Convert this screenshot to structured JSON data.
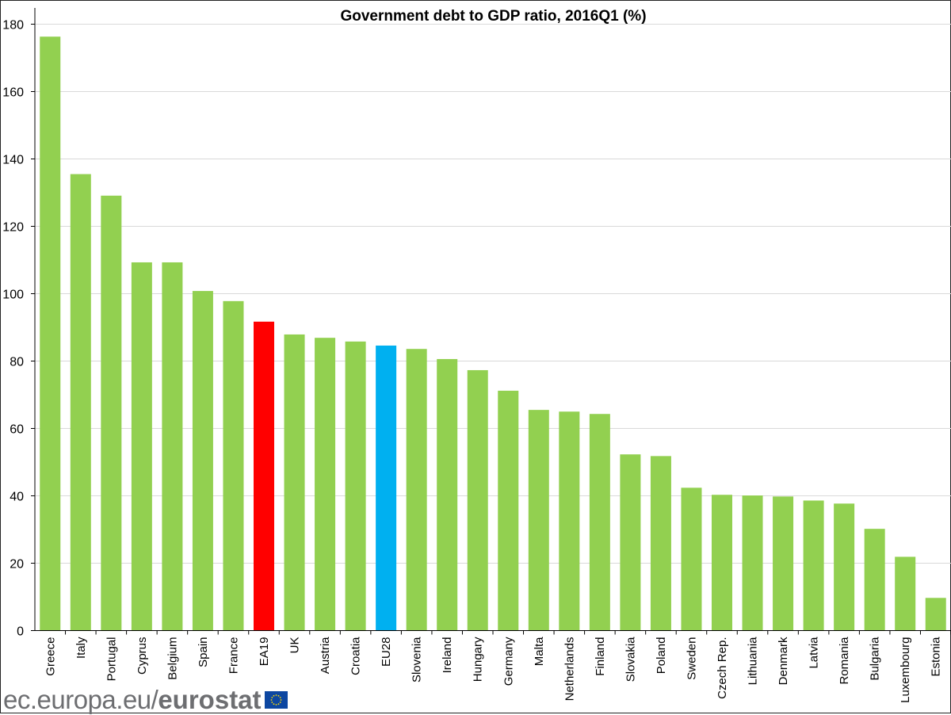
{
  "chart_data": {
    "type": "bar",
    "title": "Government debt to GDP ratio, 2016Q1  (%)",
    "xlabel": "",
    "ylabel": "",
    "ylim": [
      0,
      180
    ],
    "yticks": [
      0,
      20,
      40,
      60,
      80,
      100,
      120,
      140,
      160,
      180
    ],
    "grid": true,
    "categories": [
      "Greece",
      "Italy",
      "Portugal",
      "Cyprus",
      "Belgium",
      "Spain",
      "France",
      "EA19",
      "UK",
      "Austria",
      "Croatia",
      "EU28",
      "Slovenia",
      "Ireland",
      "Hungary",
      "Germany",
      "Malta",
      "Netherlands",
      "Finland",
      "Slovakia",
      "Poland",
      "Sweden",
      "Czech Rep.",
      "Lithuania",
      "Denmark",
      "Latvia",
      "Romania",
      "Bulgaria",
      "Luxembourg",
      "Estonia"
    ],
    "values": [
      176.3,
      135.5,
      129.1,
      109.3,
      109.3,
      100.8,
      97.8,
      91.7,
      87.9,
      86.9,
      85.8,
      84.6,
      83.6,
      80.6,
      77.3,
      71.2,
      65.5,
      65.0,
      64.3,
      52.3,
      51.8,
      42.4,
      40.3,
      40.1,
      39.8,
      38.6,
      37.7,
      30.2,
      21.9,
      9.7
    ],
    "colors": {
      "default": "#92d050",
      "EA19": "#ff0000",
      "EU28": "#00b0f0"
    }
  },
  "logo": {
    "url": "ec.europa.eu/",
    "brand": "eurostat"
  }
}
